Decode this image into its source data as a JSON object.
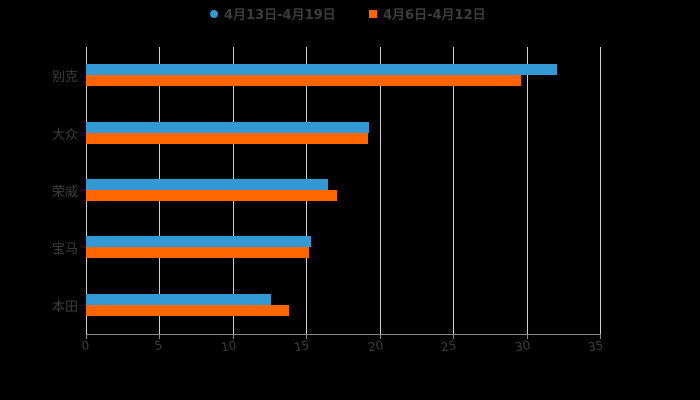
{
  "chart_data": {
    "type": "bar",
    "orientation": "horizontal",
    "title": "",
    "xlabel": "",
    "ylabel": "",
    "categories": [
      "别克",
      "大众",
      "荣威",
      "宝马",
      "本田"
    ],
    "series": [
      {
        "name": "4月13日-4月19日",
        "color": "#3399d4",
        "values": [
          32.1,
          19.3,
          16.5,
          15.3,
          12.6
        ]
      },
      {
        "name": "4月6日-4月12日",
        "color": "#ff6600",
        "values": [
          29.6,
          19.2,
          17.1,
          15.2,
          13.8
        ]
      }
    ],
    "xlim": [
      0,
      35
    ],
    "xticks": [
      "0",
      "5",
      "10",
      "15",
      "20",
      "25",
      "30",
      "35"
    ],
    "grid": true,
    "legend_position": "top"
  },
  "legend": {
    "series1": "4月13日-4月19日",
    "series2": "4月6日-4月12日"
  },
  "axis": {
    "x_ticks": [
      "0",
      "5",
      "10",
      "15",
      "20",
      "25",
      "30",
      "35"
    ],
    "categories": [
      "别克",
      "大众",
      "荣威",
      "宝马",
      "本田"
    ]
  }
}
